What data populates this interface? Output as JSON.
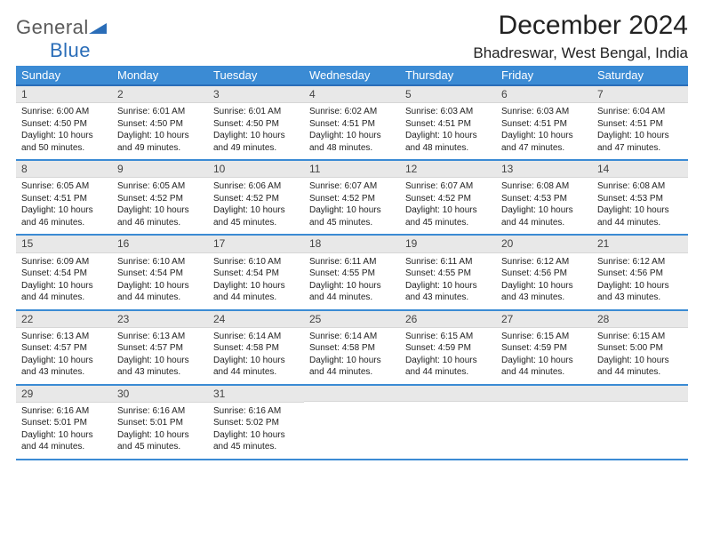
{
  "brand": {
    "part1": "General",
    "part2": "Blue"
  },
  "title": "December 2024",
  "location": "Bhadreswar, West Bengal, India",
  "colors": {
    "header_bg": "#3b8bd4",
    "header_border": "#2a6db8",
    "row_border": "#3b8bd4",
    "daynum_bg": "#e8e8e8",
    "text": "#222222",
    "logo_gray": "#5a5a5a",
    "logo_blue": "#2a6db8"
  },
  "typography": {
    "title_fontsize": 30,
    "location_fontsize": 17,
    "header_fontsize": 13,
    "daynum_fontsize": 12,
    "body_fontsize": 10
  },
  "weekdays": [
    "Sunday",
    "Monday",
    "Tuesday",
    "Wednesday",
    "Thursday",
    "Friday",
    "Saturday"
  ],
  "labels": {
    "sunrise": "Sunrise:",
    "sunset": "Sunset:",
    "daylight": "Daylight:"
  },
  "weeks": [
    [
      {
        "day": "1",
        "sunrise": "6:00 AM",
        "sunset": "4:50 PM",
        "daylight": "10 hours and 50 minutes."
      },
      {
        "day": "2",
        "sunrise": "6:01 AM",
        "sunset": "4:50 PM",
        "daylight": "10 hours and 49 minutes."
      },
      {
        "day": "3",
        "sunrise": "6:01 AM",
        "sunset": "4:50 PM",
        "daylight": "10 hours and 49 minutes."
      },
      {
        "day": "4",
        "sunrise": "6:02 AM",
        "sunset": "4:51 PM",
        "daylight": "10 hours and 48 minutes."
      },
      {
        "day": "5",
        "sunrise": "6:03 AM",
        "sunset": "4:51 PM",
        "daylight": "10 hours and 48 minutes."
      },
      {
        "day": "6",
        "sunrise": "6:03 AM",
        "sunset": "4:51 PM",
        "daylight": "10 hours and 47 minutes."
      },
      {
        "day": "7",
        "sunrise": "6:04 AM",
        "sunset": "4:51 PM",
        "daylight": "10 hours and 47 minutes."
      }
    ],
    [
      {
        "day": "8",
        "sunrise": "6:05 AM",
        "sunset": "4:51 PM",
        "daylight": "10 hours and 46 minutes."
      },
      {
        "day": "9",
        "sunrise": "6:05 AM",
        "sunset": "4:52 PM",
        "daylight": "10 hours and 46 minutes."
      },
      {
        "day": "10",
        "sunrise": "6:06 AM",
        "sunset": "4:52 PM",
        "daylight": "10 hours and 45 minutes."
      },
      {
        "day": "11",
        "sunrise": "6:07 AM",
        "sunset": "4:52 PM",
        "daylight": "10 hours and 45 minutes."
      },
      {
        "day": "12",
        "sunrise": "6:07 AM",
        "sunset": "4:52 PM",
        "daylight": "10 hours and 45 minutes."
      },
      {
        "day": "13",
        "sunrise": "6:08 AM",
        "sunset": "4:53 PM",
        "daylight": "10 hours and 44 minutes."
      },
      {
        "day": "14",
        "sunrise": "6:08 AM",
        "sunset": "4:53 PM",
        "daylight": "10 hours and 44 minutes."
      }
    ],
    [
      {
        "day": "15",
        "sunrise": "6:09 AM",
        "sunset": "4:54 PM",
        "daylight": "10 hours and 44 minutes."
      },
      {
        "day": "16",
        "sunrise": "6:10 AM",
        "sunset": "4:54 PM",
        "daylight": "10 hours and 44 minutes."
      },
      {
        "day": "17",
        "sunrise": "6:10 AM",
        "sunset": "4:54 PM",
        "daylight": "10 hours and 44 minutes."
      },
      {
        "day": "18",
        "sunrise": "6:11 AM",
        "sunset": "4:55 PM",
        "daylight": "10 hours and 44 minutes."
      },
      {
        "day": "19",
        "sunrise": "6:11 AM",
        "sunset": "4:55 PM",
        "daylight": "10 hours and 43 minutes."
      },
      {
        "day": "20",
        "sunrise": "6:12 AM",
        "sunset": "4:56 PM",
        "daylight": "10 hours and 43 minutes."
      },
      {
        "day": "21",
        "sunrise": "6:12 AM",
        "sunset": "4:56 PM",
        "daylight": "10 hours and 43 minutes."
      }
    ],
    [
      {
        "day": "22",
        "sunrise": "6:13 AM",
        "sunset": "4:57 PM",
        "daylight": "10 hours and 43 minutes."
      },
      {
        "day": "23",
        "sunrise": "6:13 AM",
        "sunset": "4:57 PM",
        "daylight": "10 hours and 43 minutes."
      },
      {
        "day": "24",
        "sunrise": "6:14 AM",
        "sunset": "4:58 PM",
        "daylight": "10 hours and 44 minutes."
      },
      {
        "day": "25",
        "sunrise": "6:14 AM",
        "sunset": "4:58 PM",
        "daylight": "10 hours and 44 minutes."
      },
      {
        "day": "26",
        "sunrise": "6:15 AM",
        "sunset": "4:59 PM",
        "daylight": "10 hours and 44 minutes."
      },
      {
        "day": "27",
        "sunrise": "6:15 AM",
        "sunset": "4:59 PM",
        "daylight": "10 hours and 44 minutes."
      },
      {
        "day": "28",
        "sunrise": "6:15 AM",
        "sunset": "5:00 PM",
        "daylight": "10 hours and 44 minutes."
      }
    ],
    [
      {
        "day": "29",
        "sunrise": "6:16 AM",
        "sunset": "5:01 PM",
        "daylight": "10 hours and 44 minutes."
      },
      {
        "day": "30",
        "sunrise": "6:16 AM",
        "sunset": "5:01 PM",
        "daylight": "10 hours and 45 minutes."
      },
      {
        "day": "31",
        "sunrise": "6:16 AM",
        "sunset": "5:02 PM",
        "daylight": "10 hours and 45 minutes."
      },
      null,
      null,
      null,
      null
    ]
  ]
}
